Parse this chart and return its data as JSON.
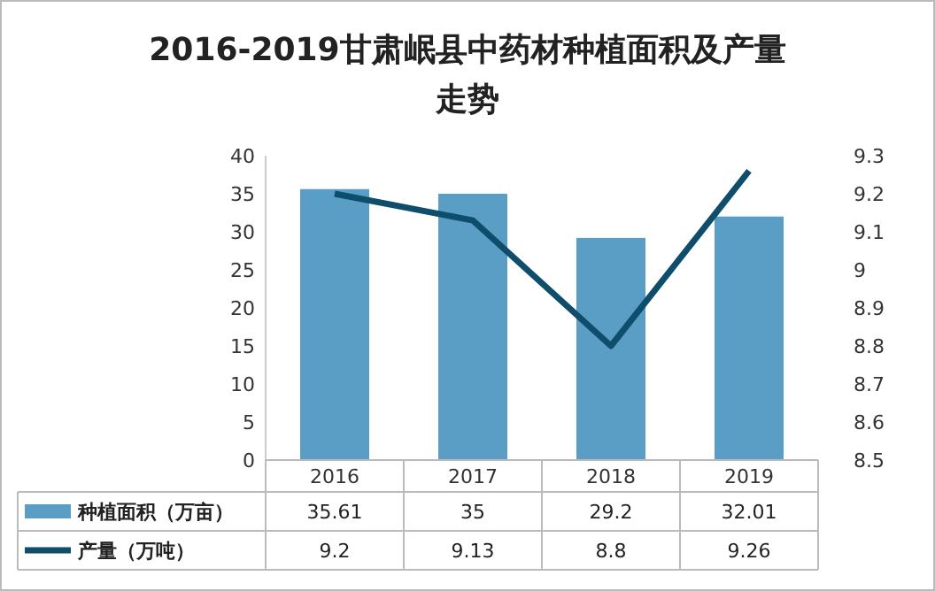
{
  "chart_data": {
    "type": "bar",
    "title": "2016-2019甘肃岷县中药材种植面积及产量走势",
    "categories": [
      "2016",
      "2017",
      "2018",
      "2019"
    ],
    "series": [
      {
        "name": "种植面积（万亩）",
        "color": "#5a9ec5",
        "values": [
          35.61,
          35,
          29.2,
          32.01
        ]
      },
      {
        "name": "产量（万吨）",
        "type": "line",
        "axis": "y2",
        "color": "#0e4d6b",
        "values": [
          9.2,
          9.13,
          8.8,
          9.26
        ]
      }
    ],
    "ylim": [
      0,
      40
    ],
    "yticks": [
      0,
      5,
      10,
      15,
      20,
      25,
      30,
      35,
      40
    ],
    "y2lim": [
      8.5,
      9.3
    ],
    "y2ticks": [
      8.5,
      8.6,
      8.7,
      8.8,
      8.9,
      9,
      9.1,
      9.2,
      9.3
    ],
    "data_labels": true,
    "legend": "bottom",
    "marker": "none",
    "line_style": "solid"
  }
}
